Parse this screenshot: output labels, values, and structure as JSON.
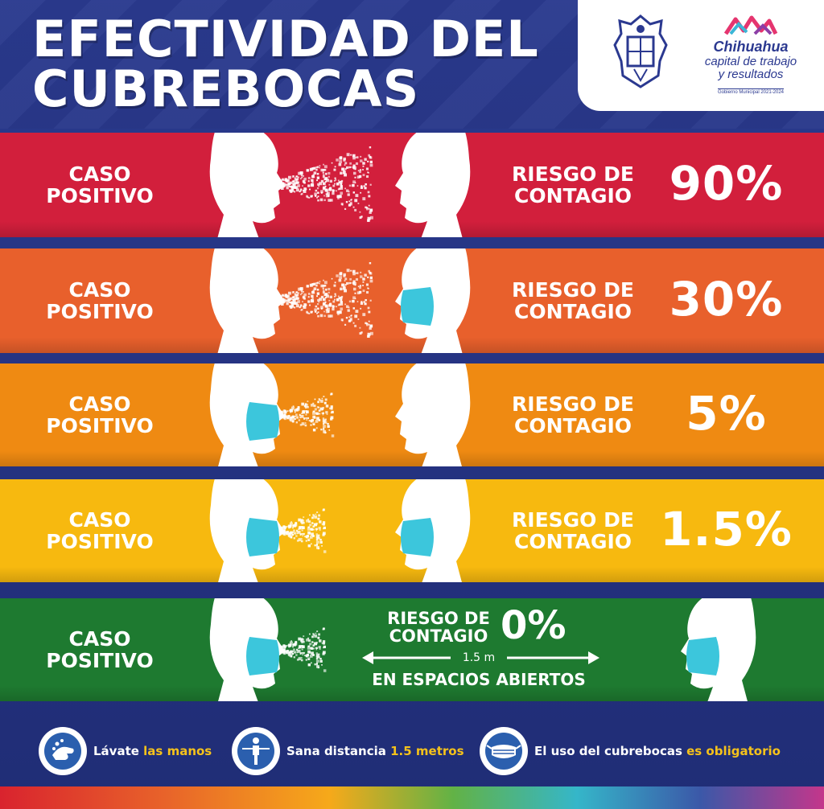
{
  "title": {
    "line1": "EFECTIVIDAD DEL",
    "line2": "CUBREBOCAS"
  },
  "logo": {
    "name": "Chihuahua",
    "tag_line1": "capital de trabajo",
    "tag_line2": "y resultados",
    "government": "Gobierno Municipal 2021-2024"
  },
  "rows": [
    {
      "case_line1": "CASO",
      "case_line2": "POSITIVO",
      "risk_line1": "RIESGO DE",
      "risk_line2": "CONTAGIO",
      "percent": "90%",
      "color": "#d21f3c",
      "infected_mask": false,
      "receiver_mask": false
    },
    {
      "case_line1": "CASO",
      "case_line2": "POSITIVO",
      "risk_line1": "RIESGO DE",
      "risk_line2": "CONTAGIO",
      "percent": "30%",
      "color": "#e8602c",
      "infected_mask": false,
      "receiver_mask": true
    },
    {
      "case_line1": "CASO",
      "case_line2": "POSITIVO",
      "risk_line1": "RIESGO DE",
      "risk_line2": "CONTAGIO",
      "percent": "5%",
      "color": "#ef8a12",
      "infected_mask": true,
      "receiver_mask": false
    },
    {
      "case_line1": "CASO",
      "case_line2": "POSITIVO",
      "risk_line1": "RIESGO DE",
      "risk_line2": "CONTAGIO",
      "percent": "1.5%",
      "color": "#f7b90f",
      "infected_mask": true,
      "receiver_mask": true
    },
    {
      "case_line1": "CASO",
      "case_line2": "POSITIVO",
      "risk_line1": "RIESGO DE",
      "risk_line2": "CONTAGIO",
      "percent": "0%",
      "color": "#1e7a30",
      "infected_mask": true,
      "receiver_mask": true,
      "distance": "1.5 m",
      "location": "EN ESPACIOS ABIERTOS"
    }
  ],
  "footer": [
    {
      "icon": "handwash-icon",
      "text": "Lávate ",
      "highlight": "las manos"
    },
    {
      "icon": "distance-icon",
      "text": "Sana distancia ",
      "highlight": "1.5 metros"
    },
    {
      "icon": "mask-icon",
      "text": "El uso del cubrebocas ",
      "highlight": "es obligatorio"
    }
  ],
  "colors": {
    "background": "#24327f",
    "highlight": "#f5c21b",
    "mask": "#3cc6dc"
  }
}
